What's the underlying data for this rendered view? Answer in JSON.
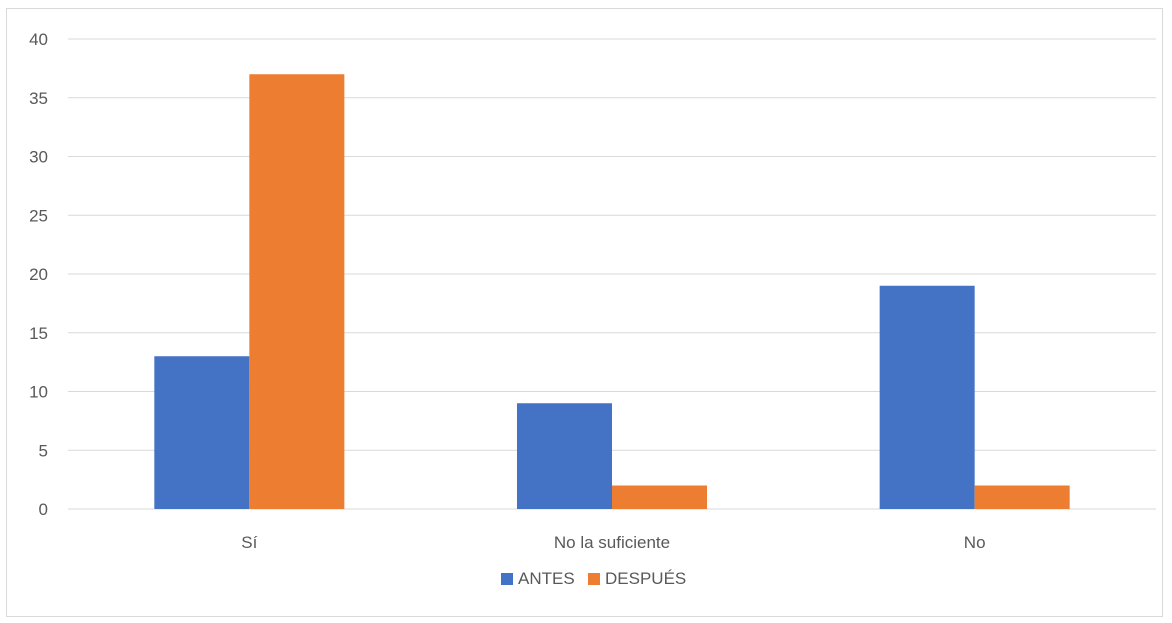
{
  "chart_data": {
    "type": "bar",
    "title": "",
    "xlabel": "",
    "ylabel": "",
    "categories": [
      "Sí",
      "No la suficiente",
      "No"
    ],
    "series": [
      {
        "name": "ANTES",
        "values": [
          13,
          9,
          19
        ],
        "color": "#4472C4"
      },
      {
        "name": "DESPUÉS",
        "values": [
          37,
          2,
          2
        ],
        "color": "#ED7D31"
      }
    ],
    "ylim": [
      0,
      40
    ],
    "yticks": [
      0,
      5,
      10,
      15,
      20,
      25,
      30,
      35,
      40
    ],
    "grid": true,
    "legend": "bottom",
    "colors": {
      "gridline": "#d9d9d9",
      "text": "#595959"
    }
  }
}
